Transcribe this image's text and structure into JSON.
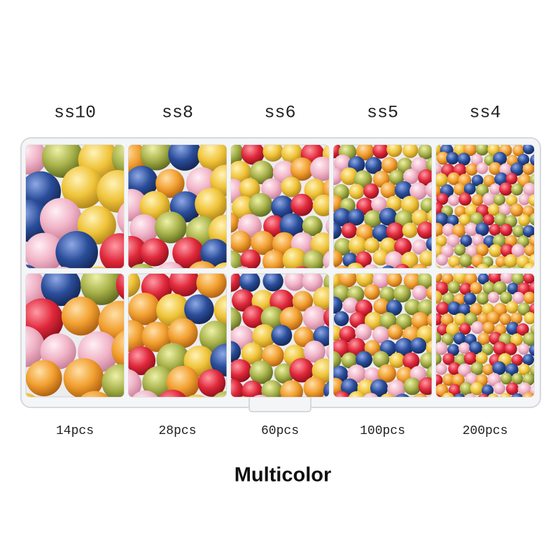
{
  "columns": [
    {
      "size": "ss10",
      "count": "14pcs"
    },
    {
      "size": "ss8",
      "count": "28pcs"
    },
    {
      "size": "ss6",
      "count": "60pcs"
    },
    {
      "size": "ss5",
      "count": "100pcs"
    },
    {
      "size": "ss4",
      "count": "200pcs"
    }
  ],
  "caption": "Multicolor"
}
